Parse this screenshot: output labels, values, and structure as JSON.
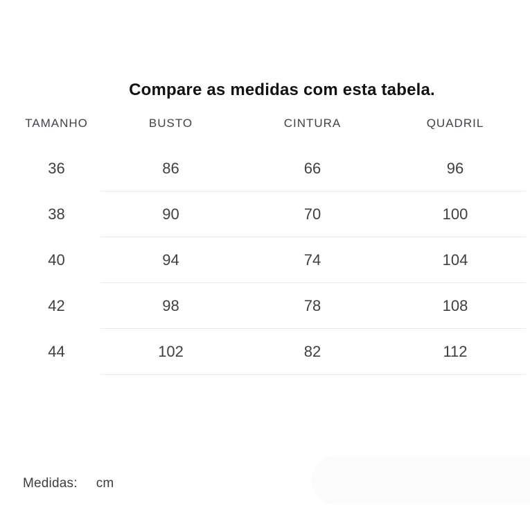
{
  "page": {
    "title": "Compare as medidas com esta tabela."
  },
  "size_table": {
    "columns": [
      "TAMANHO",
      "BUSTO",
      "CINTURA",
      "QUADRIL"
    ],
    "rows": [
      [
        "36",
        "86",
        "66",
        "96"
      ],
      [
        "38",
        "90",
        "70",
        "100"
      ],
      [
        "40",
        "94",
        "74",
        "104"
      ],
      [
        "42",
        "98",
        "78",
        "108"
      ],
      [
        "44",
        "102",
        "82",
        "112"
      ]
    ]
  },
  "footer": {
    "label": "Medidas:",
    "unit": "cm"
  },
  "colors": {
    "heading_color": "#121212",
    "header_text_color": "#3e434c",
    "cell_text_color": "#3f3f3f",
    "divider_color": "#e9e9e9",
    "pill_color": "#fbfbfb",
    "footer_text_color": "#3d3d3d"
  }
}
